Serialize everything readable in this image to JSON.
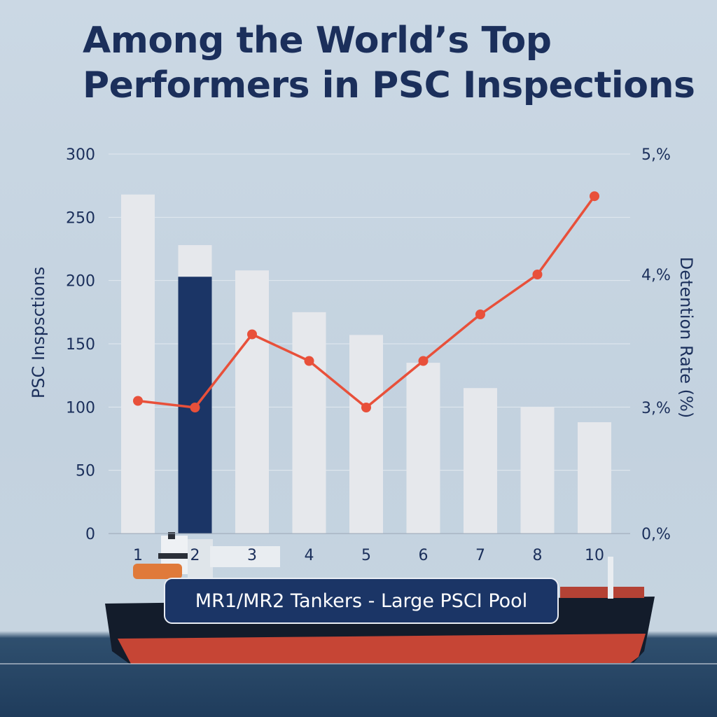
{
  "colors": {
    "bar": "#e6e8ec",
    "bar_highlight": "#1b3566",
    "line": "#e8503a",
    "text": "#1b2f5b",
    "grid": "#e2e8ef"
  },
  "title_lines": [
    "Among the World’s Top",
    "Performers in PSC Inspections"
  ],
  "caption": "MR1/MR2 Tankers - Large PSCI Pool",
  "chart_data": {
    "type": "bar",
    "title": "Among the World’s Top Performers in PSC Inspections",
    "categories": [
      "1",
      "2",
      "3",
      "4",
      "5",
      "6",
      "7",
      "8",
      "10"
    ],
    "series": [
      {
        "name": "PSC Inspections",
        "type": "bar",
        "axis": "left",
        "values": [
          268,
          228,
          208,
          175,
          157,
          135,
          115,
          100,
          88
        ],
        "overlay": {
          "category": "2",
          "value": 203
        }
      },
      {
        "name": "Detention Rate (%)",
        "type": "line",
        "axis": "right",
        "values": [
          3.05,
          3.0,
          3.55,
          3.35,
          3.0,
          3.35,
          3.7,
          4.0,
          4.65
        ]
      }
    ],
    "ylabel": "PSC Inspsctions",
    "ylabel_right": "Detention Rate (%)",
    "ylim": [
      0,
      300
    ],
    "ylim_right": [
      0,
      5
    ],
    "yticks": [
      300,
      250,
      200,
      150,
      100,
      50,
      0
    ],
    "yticks_right": [
      {
        "label": "5,%",
        "value": 5
      },
      {
        "label": "4,%",
        "value": 4
      },
      {
        "label": "3,%",
        "value": 3
      },
      {
        "label": "0,%",
        "value": 0
      }
    ],
    "grid": true
  }
}
